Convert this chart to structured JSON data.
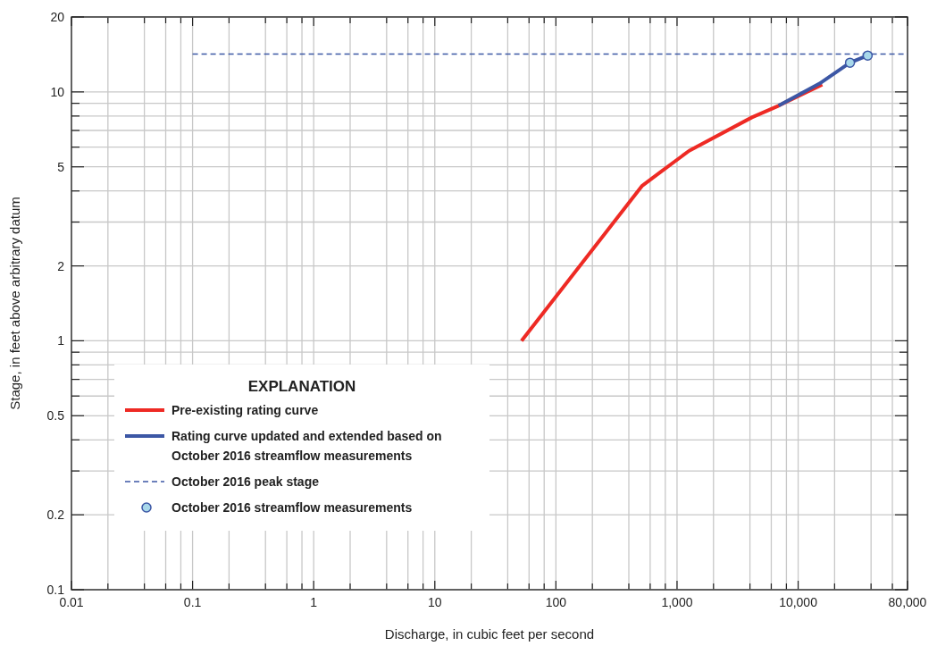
{
  "chart_data": {
    "type": "line",
    "xlabel": "Discharge, in cubic feet per second",
    "ylabel": "Stage, in feet above arbitrary datum",
    "legend_title": "EXPLANATION",
    "log": "xy",
    "grid": true,
    "legend": "bottom left",
    "xlim": [
      0.01,
      80000
    ],
    "ylim": [
      0.1,
      20
    ],
    "xticks": [
      0.01,
      {
        "value": 0.02,
        "label": null
      },
      {
        "value": 0.04,
        "label": null
      },
      {
        "value": 0.06,
        "label": null
      },
      {
        "value": 0.08,
        "label": null
      },
      0.1,
      {
        "value": 0.2,
        "label": null
      },
      {
        "value": 0.4,
        "label": null
      },
      {
        "value": 0.6,
        "label": null
      },
      {
        "value": 0.8,
        "label": null
      },
      1,
      {
        "value": 2,
        "label": null
      },
      {
        "value": 4,
        "label": null
      },
      {
        "value": 6,
        "label": null
      },
      {
        "value": 8,
        "label": null
      },
      10,
      {
        "value": 20,
        "label": null
      },
      {
        "value": 40,
        "label": null
      },
      {
        "value": 60,
        "label": null
      },
      {
        "value": 80,
        "label": null
      },
      100,
      {
        "value": 200,
        "label": null
      },
      {
        "value": 400,
        "label": null
      },
      {
        "value": 600,
        "label": null
      },
      {
        "value": 800,
        "label": null
      },
      {
        "value": 1000,
        "label": "1,000"
      },
      {
        "value": 2000,
        "label": null
      },
      {
        "value": 4000,
        "label": null
      },
      {
        "value": 6000,
        "label": null
      },
      {
        "value": 8000,
        "label": null
      },
      {
        "value": 10000,
        "label": "10,000"
      },
      {
        "value": 20000,
        "label": null
      },
      {
        "value": 40000,
        "label": null
      },
      {
        "value": 60000,
        "label": null
      },
      {
        "value": 80000,
        "label": "80,000"
      }
    ],
    "yticks": [
      0.1,
      0.2,
      {
        "value": 0.3,
        "label": null
      },
      {
        "value": 0.4,
        "label": null
      },
      0.5,
      {
        "value": 0.6,
        "label": null
      },
      {
        "value": 0.7,
        "label": null
      },
      {
        "value": 0.8,
        "label": null
      },
      {
        "value": 0.9,
        "label": null
      },
      1,
      2,
      {
        "value": 3,
        "label": null
      },
      {
        "value": 4,
        "label": null
      },
      5,
      {
        "value": 6,
        "label": null
      },
      {
        "value": 7,
        "label": null
      },
      {
        "value": 8,
        "label": null
      },
      {
        "value": 9,
        "label": null
      },
      10,
      20
    ],
    "series": [
      {
        "name": "Pre-existing rating curve",
        "color": "#ee2a24",
        "line_style": "solid",
        "x": [
          52,
          516,
          725,
          1260,
          4150,
          6900,
          15800
        ],
        "values": [
          1.0,
          4.2,
          4.75,
          5.8,
          7.9,
          8.8,
          10.7
        ]
      },
      {
        "name": "Rating curve updated and extended based on October 2016 streamflow measurements",
        "color": "#3c57a5",
        "line_style": "solid",
        "x": [
          6900,
          15000,
          26800,
          37500
        ],
        "values": [
          8.8,
          10.8,
          13.1,
          14.0
        ]
      },
      {
        "name": "October 2016 peak stage",
        "color": "#3c57a5",
        "line_style": "dashed",
        "x": [
          0.1,
          80000
        ],
        "values": [
          14.2,
          14.2
        ]
      },
      {
        "name": "October 2016 streamflow measurements",
        "type": "scatter",
        "color": "#a8d8ea",
        "marker": "circle",
        "x": [
          26800,
          37500
        ],
        "values": [
          13.1,
          14.0
        ]
      }
    ]
  }
}
